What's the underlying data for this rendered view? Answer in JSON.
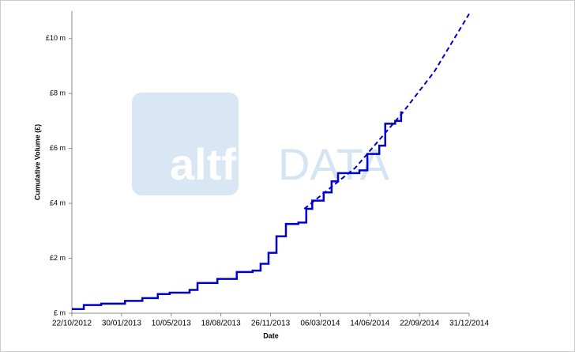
{
  "chart_data": {
    "type": "line",
    "xlabel": "Date",
    "ylabel": "Cumulative Volume (£)",
    "watermark": [
      "altfi",
      "DATA"
    ],
    "xlim": [
      "22/10/2012",
      "31/12/2014"
    ],
    "xticks": [
      "22/10/2012",
      "30/01/2013",
      "10/05/2013",
      "18/08/2013",
      "26/11/2013",
      "06/03/2014",
      "14/06/2014",
      "22/09/2014",
      "31/12/2014"
    ],
    "ylim": [
      0,
      11
    ],
    "yticks": [
      {
        "value": 0,
        "label": "£ m"
      },
      {
        "value": 2,
        "label": "£2 m"
      },
      {
        "value": 4,
        "label": "£4 m"
      },
      {
        "value": 6,
        "label": "£6 m"
      },
      {
        "value": 8,
        "label": "£8 m"
      },
      {
        "value": 10,
        "label": "£10 m"
      }
    ],
    "series": [
      {
        "color": "#0000cc",
        "style": "solid",
        "step": true,
        "x": [
          "22/10/2012",
          "15/11/2012",
          "20/12/2012",
          "06/02/2013",
          "13/03/2013",
          "13/04/2013",
          "07/05/2013",
          "16/06/2013",
          "02/07/2013",
          "11/08/2013",
          "19/09/2013",
          "21/10/2013",
          "06/11/2013",
          "22/11/2013",
          "08/12/2013",
          "27/12/2013",
          "21/01/2014",
          "06/02/2014",
          "18/02/2014",
          "13/03/2014",
          "29/03/2014",
          "11/04/2014",
          "24/05/2014",
          "09/06/2014",
          "03/07/2014",
          "15/07/2014",
          "04/08/2014",
          "16/08/2014"
        ],
        "values": [
          0.15,
          0.3,
          0.35,
          0.45,
          0.55,
          0.7,
          0.75,
          0.85,
          1.1,
          1.25,
          1.5,
          1.55,
          1.8,
          2.2,
          2.8,
          3.25,
          3.3,
          3.8,
          4.1,
          4.4,
          4.8,
          5.1,
          5.2,
          5.8,
          6.1,
          6.9,
          7.0,
          7.35
        ]
      },
      {
        "color": "#0000cc",
        "style": "dashed",
        "step": false,
        "x": [
          "02/02/2014",
          "16/05/2014",
          "19/08/2014",
          "22/10/2014",
          "31/12/2014"
        ],
        "values": [
          3.8,
          5.3,
          7.3,
          8.8,
          10.9
        ]
      }
    ]
  }
}
